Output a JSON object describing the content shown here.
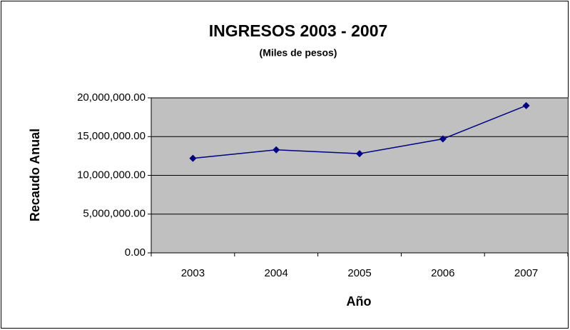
{
  "chart_data": {
    "type": "line",
    "title": "INGRESOS 2003 - 2007",
    "subtitle": "(Miles de pesos)",
    "x_label": "Año",
    "y_label": "Recaudo Anual",
    "categories": [
      "2003",
      "2004",
      "2005",
      "2006",
      "2007"
    ],
    "series": [
      {
        "name": "Recaudo Anual",
        "color": "#000080",
        "values": [
          12200000,
          13300000,
          12800000,
          14700000,
          19000000
        ]
      }
    ],
    "ylim": [
      0,
      20000000
    ],
    "yticks": [
      {
        "value": 0,
        "label": "0.00"
      },
      {
        "value": 5000000,
        "label": "5,000,000.00"
      },
      {
        "value": 10000000,
        "label": "10,000,000.00"
      },
      {
        "value": 15000000,
        "label": "15,000,000.00"
      },
      {
        "value": 20000000,
        "label": "20,000,000.00"
      }
    ],
    "grid": true,
    "plot_background": "#c0c0c0"
  }
}
